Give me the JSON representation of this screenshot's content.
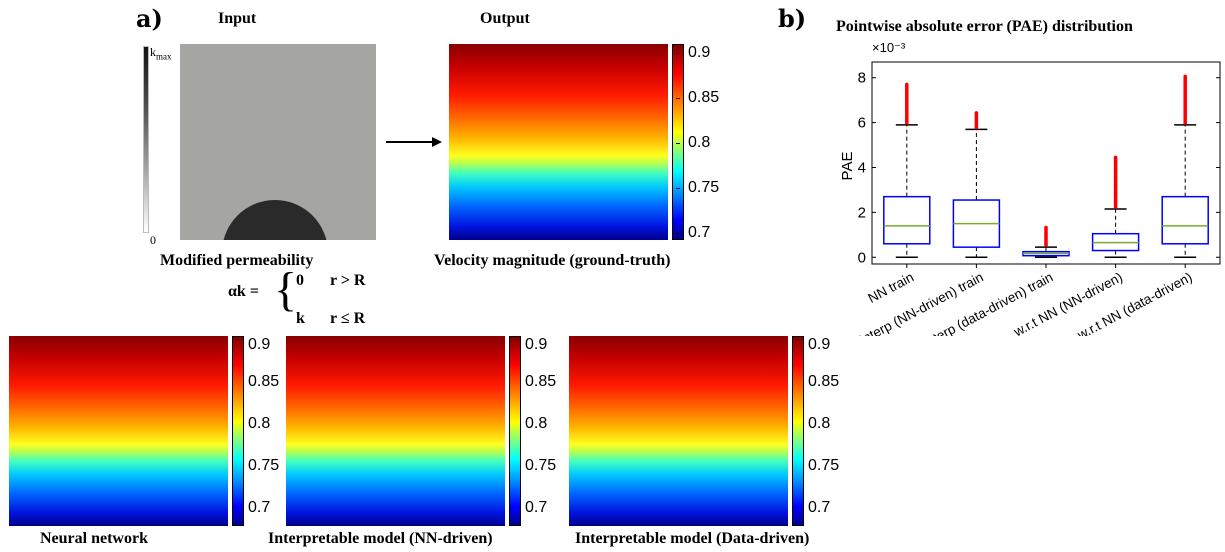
{
  "panel_a": {
    "label": "a)",
    "input_title": "Input",
    "output_title": "Output",
    "perm_cbar": {
      "max_label": "k",
      "max_sub": "max",
      "min_label": "0"
    },
    "input_caption": "Modified permeability",
    "formula": {
      "lhs": "αk =",
      "case1_val": "0",
      "case1_cond": "r > R",
      "case2_val": "k",
      "case2_cond": "r ≤ R"
    },
    "output_caption": "Velocity magnitude (ground-truth)",
    "colorbar_ticks": [
      "0.9",
      "0.85",
      "0.8",
      "0.75",
      "0.7"
    ],
    "bottom_captions": [
      "Neural network",
      "Interpretable model (NN-driven)",
      "Interpretable model (Data-driven)"
    ]
  },
  "panel_b": {
    "label": "b)"
  },
  "chart_data": {
    "type": "box",
    "title": "Pointwise absolute error (PAE) distribution",
    "ylabel": "PAE",
    "y_multiplier": "×10⁻³",
    "ylim": [
      -0.3,
      8.7
    ],
    "yticks": [
      "0",
      "2",
      "4",
      "6",
      "8"
    ],
    "categories": [
      "NN train",
      "Interp (NN-driven) train",
      "Interp (data-driven) train",
      "w.r.t NN (NN-driven)",
      "w.r.t NN (data-driven)"
    ],
    "boxes": [
      {
        "whisker_low": 0.0,
        "q1": 0.6,
        "median": 1.4,
        "q3": 2.7,
        "whisker_high": 5.9,
        "outlier_max": 7.7
      },
      {
        "whisker_low": 0.0,
        "q1": 0.45,
        "median": 1.5,
        "q3": 2.55,
        "whisker_high": 5.7,
        "outlier_max": 6.45
      },
      {
        "whisker_low": 0.0,
        "q1": 0.07,
        "median": 0.17,
        "q3": 0.25,
        "whisker_high": 0.45,
        "outlier_max": 1.35
      },
      {
        "whisker_low": 0.0,
        "q1": 0.3,
        "median": 0.65,
        "q3": 1.05,
        "whisker_high": 2.15,
        "outlier_max": 4.45
      },
      {
        "whisker_low": 0.0,
        "q1": 0.6,
        "median": 1.4,
        "q3": 2.7,
        "whisker_high": 5.9,
        "outlier_max": 8.1
      }
    ],
    "colors": {
      "box": "#0000ff",
      "median": "#77ac30",
      "outlier": "#ff0000",
      "whisker": "#000000"
    }
  }
}
